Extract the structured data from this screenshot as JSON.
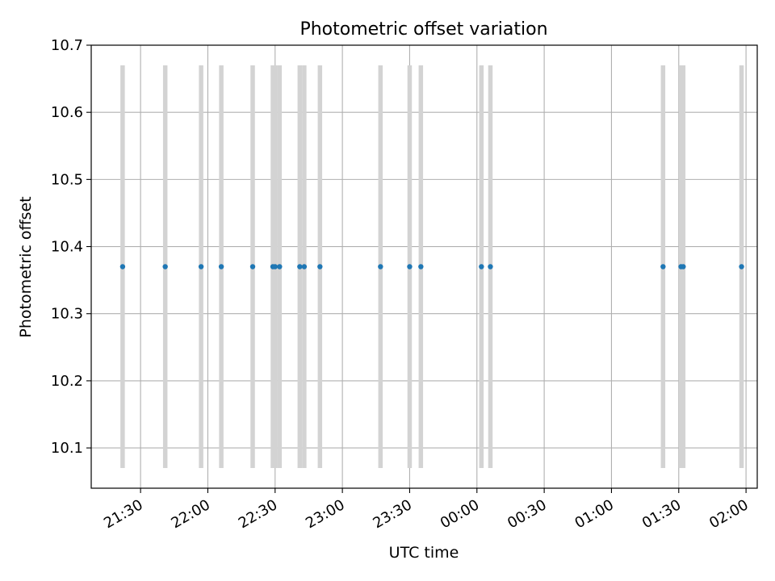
{
  "chart_data": {
    "type": "scatter",
    "title": "Photometric offset variation",
    "xlabel": "UTC time",
    "ylabel": "Photometric offset",
    "x_axis": {
      "kind": "time",
      "range": [
        "21:08",
        "02:05"
      ],
      "ticks": [
        "21:30",
        "22:00",
        "22:30",
        "23:00",
        "23:30",
        "00:00",
        "00:30",
        "01:00",
        "01:30",
        "02:00"
      ]
    },
    "y_axis": {
      "range": [
        10.04,
        10.7
      ],
      "ticks": [
        "10.1",
        "10.2",
        "10.3",
        "10.4",
        "10.5",
        "10.6",
        "10.7"
      ]
    },
    "grid": true,
    "series": [
      {
        "color": "#1f77b4",
        "errorbar_color": "#d3d3d3",
        "x": [
          "21:22",
          "21:41",
          "21:57",
          "22:06",
          "22:20",
          "22:29",
          "22:30",
          "22:32",
          "22:41",
          "22:43",
          "22:50",
          "23:17",
          "23:30",
          "23:35",
          "00:02",
          "00:06",
          "01:23",
          "01:31",
          "01:32",
          "01:58"
        ],
        "y": [
          10.37,
          10.37,
          10.37,
          10.37,
          10.37,
          10.37,
          10.37,
          10.37,
          10.37,
          10.37,
          10.37,
          10.37,
          10.37,
          10.37,
          10.37,
          10.37,
          10.37,
          10.37,
          10.37,
          10.37
        ],
        "y_lower": [
          10.07,
          10.07,
          10.07,
          10.07,
          10.07,
          10.07,
          10.07,
          10.07,
          10.07,
          10.07,
          10.07,
          10.07,
          10.07,
          10.07,
          10.07,
          10.07,
          10.07,
          10.07,
          10.07,
          10.07
        ],
        "y_upper": [
          10.67,
          10.67,
          10.67,
          10.67,
          10.67,
          10.67,
          10.67,
          10.67,
          10.67,
          10.67,
          10.67,
          10.67,
          10.67,
          10.67,
          10.67,
          10.67,
          10.67,
          10.67,
          10.67,
          10.67
        ]
      }
    ]
  }
}
